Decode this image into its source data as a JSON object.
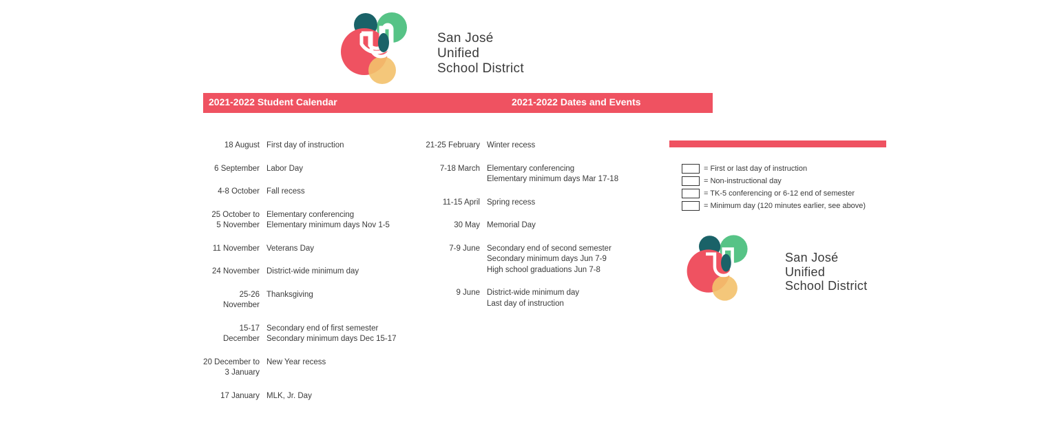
{
  "org": {
    "line1": "San José",
    "line2": "Unified",
    "line3": "School District"
  },
  "header": {
    "left_title": "2021-2022 Student Calendar",
    "right_title": "2021-2022 Dates and Events"
  },
  "colors": {
    "accent": "#ef5261",
    "text": "#3a3a3a",
    "logo_red": "#ef5261",
    "logo_teal": "#1a6268",
    "logo_green": "#56c386",
    "logo_yellow": "#f3c16b"
  },
  "col1": [
    {
      "date": "18 August",
      "lines": [
        "First day of instruction"
      ]
    },
    {
      "date": "6 September",
      "lines": [
        "Labor Day"
      ]
    },
    {
      "date": "4-8 October",
      "lines": [
        "Fall recess"
      ]
    },
    {
      "date": "25 October to\n5 November",
      "lines": [
        "Elementary conferencing",
        "Elementary minimum days Nov 1-5"
      ]
    },
    {
      "date": "11 November",
      "lines": [
        "Veterans Day"
      ]
    },
    {
      "date": "24 November",
      "lines": [
        "District-wide minimum day"
      ]
    },
    {
      "date": "25-26 November",
      "lines": [
        "Thanksgiving"
      ]
    },
    {
      "date": "15-17 December",
      "lines": [
        "Secondary end of first semester",
        "Secondary minimum days Dec 15-17"
      ]
    },
    {
      "date": "20 December to\n3 January",
      "lines": [
        "New Year recess"
      ]
    },
    {
      "date": "17 January",
      "lines": [
        "MLK, Jr. Day"
      ]
    }
  ],
  "col2": [
    {
      "date": "21-25 February",
      "lines": [
        "Winter recess"
      ]
    },
    {
      "date": "7-18 March",
      "lines": [
        "Elementary conferencing",
        "Elementary minimum days Mar 17-18"
      ]
    },
    {
      "date": "11-15 April",
      "lines": [
        "Spring recess"
      ]
    },
    {
      "date": "30 May",
      "lines": [
        "Memorial Day"
      ]
    },
    {
      "date": "7-9 June",
      "lines": [
        "Secondary end of second semester",
        "Secondary minimum days Jun 7-9",
        "High school graduations Jun 7-8"
      ]
    },
    {
      "date": "9 June",
      "lines": [
        "District-wide minimum day",
        "Last day of instruction"
      ]
    }
  ],
  "legend": [
    {
      "label": "= First or last day of instruction"
    },
    {
      "label": "= Non-instructional day"
    },
    {
      "label": "= TK-5 conferencing or 6-12 end of semester"
    },
    {
      "label": "= Minimum day (120 minutes earlier, see above)"
    }
  ]
}
